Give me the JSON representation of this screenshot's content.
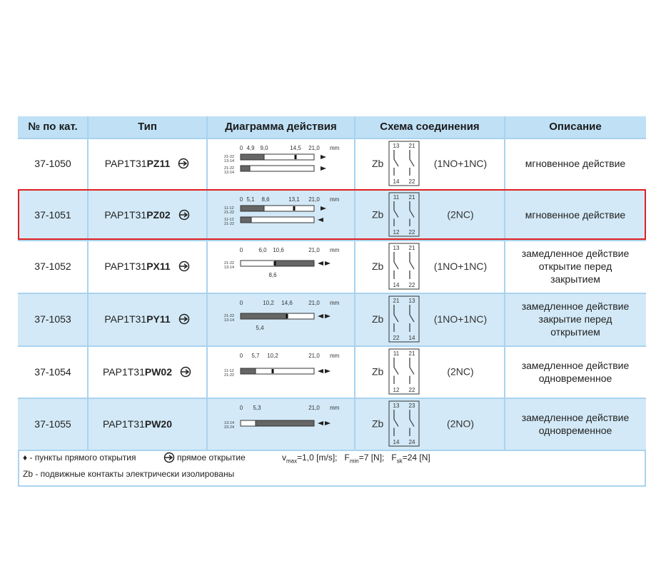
{
  "header": [
    "№ по кат.",
    "Тип",
    "Диаграмма действия",
    "Схема соединения",
    "Описание"
  ],
  "rows": [
    {
      "catalog": "37-1050",
      "type_prefix": "PAP1T31",
      "type_suffix": "PZ11",
      "diagram": {
        "ticks": [
          "0",
          "4,9",
          "9,0",
          "14,5",
          "21,0"
        ],
        "unit": "mm",
        "bars": [
          [
            "21-22",
            "13-14"
          ],
          [
            "21-22",
            "13-14"
          ]
        ]
      },
      "schema": {
        "label": "Zb",
        "top": [
          "13",
          "21"
        ],
        "bottom": [
          "14",
          "22"
        ],
        "contacts": "(1NO+1NC)"
      },
      "description": [
        "мгновенное действие"
      ]
    },
    {
      "catalog": "37-1051",
      "type_prefix": "PAP1T31",
      "type_suffix": "PZ02",
      "diagram": {
        "ticks": [
          "0",
          "5,1",
          "8,6",
          "13,1",
          "21,0"
        ],
        "unit": "mm",
        "bars": [
          [
            "11-12",
            "21-22"
          ],
          [
            "11-12",
            "21-22"
          ]
        ]
      },
      "schema": {
        "label": "Zb",
        "top": [
          "11",
          "21"
        ],
        "bottom": [
          "12",
          "22"
        ],
        "contacts": "(2NC)"
      },
      "description": [
        "мгновенное действие"
      ]
    },
    {
      "catalog": "37-1052",
      "type_prefix": "PAP1T31",
      "type_suffix": "PX11",
      "diagram": {
        "ticks": [
          "0",
          "6,0",
          "10,6",
          "21,0"
        ],
        "unit": "mm",
        "bars": [
          [
            "21-22",
            "13-14"
          ]
        ],
        "below": "8,6"
      },
      "schema": {
        "label": "Zb",
        "top": [
          "13",
          "21"
        ],
        "bottom": [
          "14",
          "22"
        ],
        "contacts": "(1NO+1NC)"
      },
      "description": [
        "замедленное действие",
        "открытие перед",
        "закрытием"
      ]
    },
    {
      "catalog": "37-1053",
      "type_prefix": "PAP1T31",
      "type_suffix": "PY11",
      "diagram": {
        "ticks": [
          "0",
          "10,2",
          "14,6",
          "21,0"
        ],
        "unit": "mm",
        "bars": [
          [
            "21-22",
            "13-14"
          ]
        ],
        "below": "5,4"
      },
      "schema": {
        "label": "Zb",
        "top": [
          "21",
          "13"
        ],
        "bottom": [
          "22",
          "14"
        ],
        "contacts": "(1NO+1NC)"
      },
      "description": [
        "замедленное действие",
        "закрытие перед",
        "открытием"
      ]
    },
    {
      "catalog": "37-1054",
      "type_prefix": "PAP1T31",
      "type_suffix": "PW02",
      "diagram": {
        "ticks": [
          "0",
          "5,7",
          "10,2",
          "21,0"
        ],
        "unit": "mm",
        "bars": [
          [
            "11-12",
            "21-22"
          ]
        ]
      },
      "schema": {
        "label": "Zb",
        "top": [
          "11",
          "21"
        ],
        "bottom": [
          "12",
          "22"
        ],
        "contacts": "(2NC)"
      },
      "description": [
        "замедленное действие",
        "одновременное"
      ]
    },
    {
      "catalog": "37-1055",
      "type_prefix": "PAP1T31",
      "type_suffix": "PW20",
      "diagram": {
        "ticks": [
          "0",
          "5,3",
          "21,0"
        ],
        "unit": "mm",
        "bars": [
          [
            "13-14",
            "23-24"
          ]
        ]
      },
      "schema": {
        "label": "Zb",
        "top": [
          "13",
          "23"
        ],
        "bottom": [
          "14",
          "24"
        ],
        "contacts": "(2NO)"
      },
      "description": [
        "замедленное действие",
        "одновременное"
      ]
    }
  ],
  "footer": {
    "direct_points": "♦ - пункты прямого открытия",
    "direct_opening": "прямое открытие",
    "formula": [
      "v",
      "max",
      "=1,0 [m/s];   F",
      "min",
      "=7 [N];   F",
      "sk",
      "=24 [N]"
    ],
    "note": "Zb - подвижные контакты электрически изолированы"
  }
}
